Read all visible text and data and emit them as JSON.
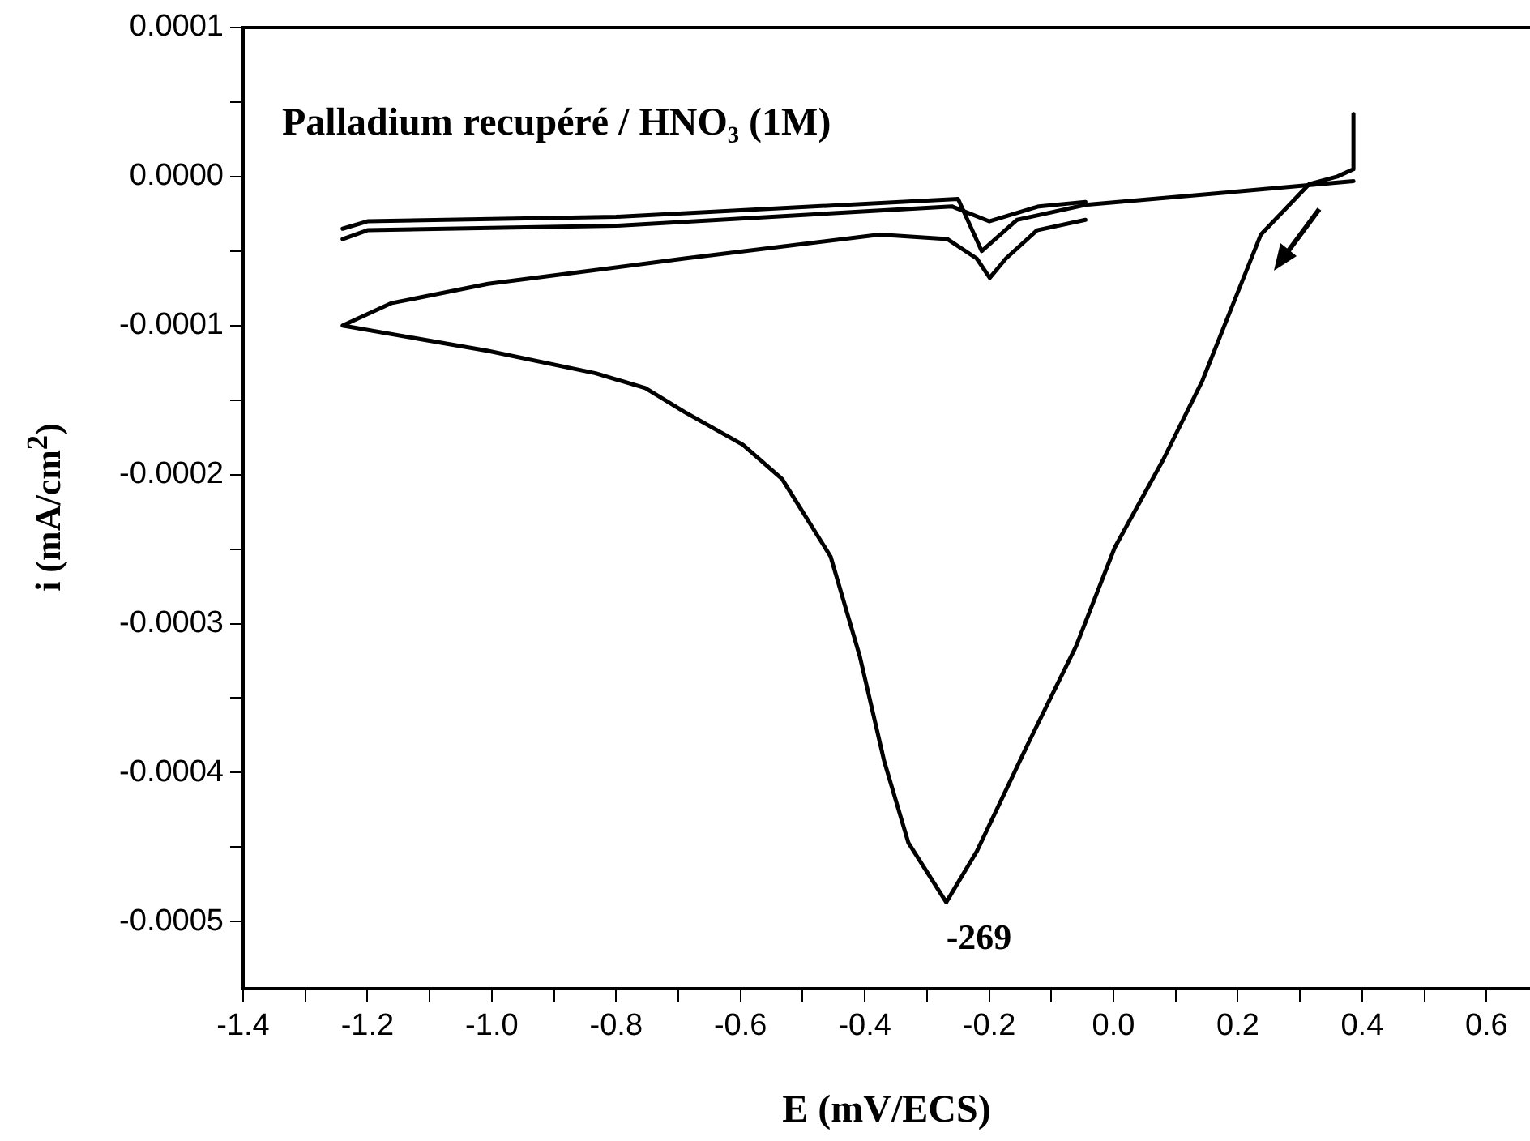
{
  "chart_data": {
    "type": "line",
    "title": "Palladium recupéré / HNO₃ (1M)",
    "xlabel": "E (mV/ECS)",
    "ylabel": "i (mA/cm$^{2}$)",
    "xlim": [
      -1.4,
      0.67
    ],
    "ylim": [
      -0.000545,
      0.0001
    ],
    "xticks": [
      {
        "value": -1.4,
        "label": "-1.4"
      },
      {
        "value": -1.3,
        "label": null
      },
      {
        "value": -1.2,
        "label": "-1.2"
      },
      {
        "value": -1.1,
        "label": null
      },
      {
        "value": -1.0,
        "label": "-1.0"
      },
      {
        "value": -0.9,
        "label": null
      },
      {
        "value": -0.8,
        "label": "-0.8"
      },
      {
        "value": -0.7,
        "label": null
      },
      {
        "value": -0.6,
        "label": "-0.6"
      },
      {
        "value": -0.5,
        "label": null
      },
      {
        "value": -0.4,
        "label": "-0.4"
      },
      {
        "value": -0.3,
        "label": null
      },
      {
        "value": -0.2,
        "label": "-0.2"
      },
      {
        "value": -0.1,
        "label": null
      },
      {
        "value": 0.0,
        "label": "0.0"
      },
      {
        "value": 0.1,
        "label": null
      },
      {
        "value": 0.2,
        "label": "0.2"
      },
      {
        "value": 0.3,
        "label": null
      },
      {
        "value": 0.4,
        "label": "0.4"
      },
      {
        "value": 0.5,
        "label": null
      },
      {
        "value": 0.6,
        "label": "0.6"
      }
    ],
    "yticks": [
      {
        "value": 0.0001,
        "label": "0.0001"
      },
      {
        "value": 5e-05,
        "label": null
      },
      {
        "value": 0,
        "label": "0.0000"
      },
      {
        "value": -5e-05,
        "label": null
      },
      {
        "value": -0.0001,
        "label": "-0.0001"
      },
      {
        "value": -0.00015,
        "label": null
      },
      {
        "value": -0.0002,
        "label": "-0.0002"
      },
      {
        "value": -0.00025,
        "label": null
      },
      {
        "value": -0.0003,
        "label": "-0.0003"
      },
      {
        "value": -0.00035,
        "label": null
      },
      {
        "value": -0.0004,
        "label": "-0.0004"
      },
      {
        "value": -0.00045,
        "label": null
      },
      {
        "value": -0.0005,
        "label": "-0.0005"
      }
    ],
    "series": [
      {
        "color": "#000000",
        "x": [
          0.386,
          0.386,
          0.36,
          0.315,
          0.237,
          0.143,
          0.08,
          0.002,
          -0.06,
          -0.139,
          -0.22,
          -0.269,
          -0.33,
          -0.369,
          -0.408,
          -0.455,
          -0.533,
          -0.596,
          -0.69,
          -0.753,
          -0.833,
          -1.006,
          -1.24,
          -1.162,
          -1.006,
          -0.69,
          -0.376,
          -0.267,
          -0.22,
          -0.199,
          -0.173,
          -0.123,
          -0.045
        ],
        "values": [
          4.2e-05,
          5e-06,
          0.0,
          -5e-06,
          -3.9e-05,
          -0.000137,
          -0.00019,
          -0.000249,
          -0.000315,
          -0.000382,
          -0.000453,
          -0.000487,
          -0.000447,
          -0.000392,
          -0.000322,
          -0.000255,
          -0.000203,
          -0.00018,
          -0.000158,
          -0.000142,
          -0.000132,
          -0.000117,
          -0.0001,
          -8.5e-05,
          -7.2e-05,
          -5.5e-05,
          -3.9e-05,
          -4.2e-05,
          -5.5e-05,
          -6.8e-05,
          -5.5e-05,
          -3.6e-05,
          -2.9e-05
        ]
      },
      {
        "color": "#000000",
        "x": [
          -1.24,
          -1.2,
          -0.8,
          -0.25,
          -0.212,
          -0.155,
          -0.045,
          0.2,
          0.386
        ],
        "values": [
          -3.5e-05,
          -3e-05,
          -2.7e-05,
          -1.5e-05,
          -5e-05,
          -2.9e-05,
          -1.9e-05,
          -1e-05,
          -3e-06
        ]
      },
      {
        "color": "#000000",
        "x": [
          -1.24,
          -1.2,
          -0.8,
          -0.26,
          -0.2,
          -0.12,
          -0.045
        ],
        "values": [
          -4.2e-05,
          -3.6e-05,
          -3.3e-05,
          -2e-05,
          -3e-05,
          -2e-05,
          -1.7e-05
        ]
      }
    ],
    "annotations": [
      {
        "text": "-269",
        "x": -0.269,
        "y": -0.000487
      }
    ],
    "grid": false,
    "legend": false,
    "marker": "none",
    "line_style": "solid"
  }
}
